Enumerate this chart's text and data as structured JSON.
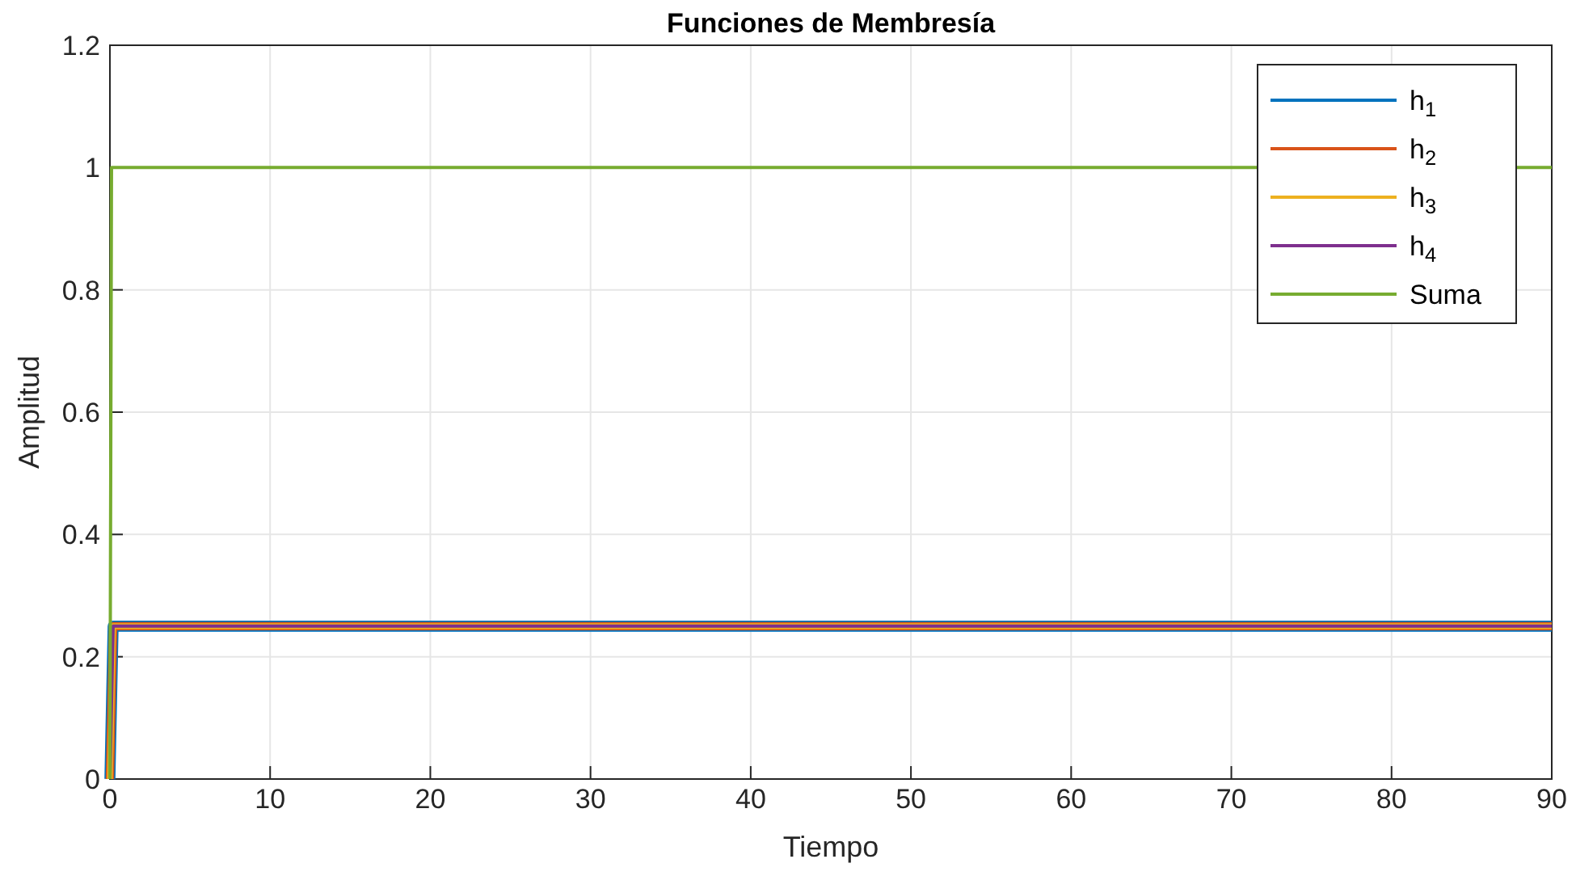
{
  "chart_data": {
    "type": "line",
    "title": "Funciones de Membresía",
    "xlabel": "Tiempo",
    "ylabel": "Amplitud",
    "x": [
      0,
      0.2,
      90
    ],
    "series": [
      {
        "name": "h$_{1}$",
        "color": "#0072bd",
        "values": [
          0,
          0.25,
          0.25
        ]
      },
      {
        "name": "h$_{2}$",
        "color": "#d95319",
        "values": [
          0,
          0.25,
          0.25
        ]
      },
      {
        "name": "h$_{3}$",
        "color": "#edb120",
        "values": [
          0,
          0.25,
          0.25
        ]
      },
      {
        "name": "h$_{4}$",
        "color": "#7e2f8e",
        "values": [
          0,
          0.25,
          0.25
        ]
      },
      {
        "name": "Suma",
        "color": "#77ac30",
        "x": [
          0,
          0.1,
          90
        ],
        "values": [
          0,
          1,
          1
        ]
      }
    ],
    "xlim": [
      0,
      90
    ],
    "xticks": [
      0,
      10,
      20,
      30,
      40,
      50,
      60,
      70,
      80,
      90
    ],
    "ylim": [
      0,
      1.2
    ],
    "yticks": [
      0,
      0.2,
      0.4,
      0.6,
      0.8,
      1,
      1.2
    ],
    "grid": true,
    "legend": "top right",
    "line_style": "solid",
    "marker": "none"
  }
}
